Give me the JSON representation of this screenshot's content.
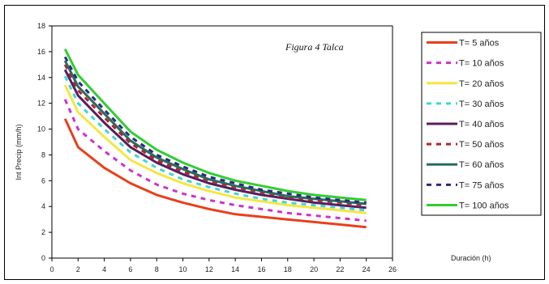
{
  "chart_data": {
    "type": "line",
    "title": "",
    "annotation": "Figura 4   Talca",
    "xlabel": "Duración (h)",
    "ylabel": "Int Precip (mm/h)",
    "xlim": [
      0,
      26
    ],
    "ylim": [
      0,
      18
    ],
    "x_ticks": [
      "0",
      "2",
      "4",
      "6",
      "8",
      "10",
      "12",
      "14",
      "16",
      "18",
      "20",
      "22",
      "24",
      "26"
    ],
    "y_ticks": [
      "0",
      "2",
      "4",
      "6",
      "8",
      "10",
      "12",
      "14",
      "16",
      "18"
    ],
    "x": [
      1,
      2,
      4,
      6,
      8,
      10,
      12,
      14,
      16,
      18,
      20,
      22,
      24
    ],
    "grid": false,
    "legend_position": "right",
    "series": [
      {
        "name": "T= 5 años",
        "color": "#e8401c",
        "dash": "solid",
        "values": [
          10.8,
          8.6,
          7.0,
          5.8,
          4.9,
          4.3,
          3.8,
          3.4,
          3.2,
          3.0,
          2.8,
          2.6,
          2.4
        ]
      },
      {
        "name": "T= 10 años",
        "color": "#cc33cc",
        "dash": "dashed",
        "values": [
          12.3,
          10.0,
          8.3,
          6.8,
          5.7,
          5.0,
          4.5,
          4.1,
          3.8,
          3.5,
          3.3,
          3.1,
          2.9
        ]
      },
      {
        "name": "T= 20 años",
        "color": "#f5e642",
        "dash": "solid",
        "values": [
          13.4,
          11.3,
          9.4,
          7.6,
          6.6,
          5.8,
          5.2,
          4.7,
          4.4,
          4.1,
          3.9,
          3.7,
          3.5
        ]
      },
      {
        "name": "T= 30 años",
        "color": "#3dd6d6",
        "dash": "dashed",
        "values": [
          14.1,
          12.0,
          10.0,
          8.2,
          7.0,
          6.1,
          5.5,
          5.0,
          4.6,
          4.3,
          4.1,
          3.9,
          3.7
        ]
      },
      {
        "name": "T= 40 años",
        "color": "#5a1e5e",
        "dash": "solid",
        "values": [
          14.6,
          12.6,
          10.5,
          8.6,
          7.4,
          6.5,
          5.8,
          5.3,
          4.9,
          4.6,
          4.3,
          4.1,
          3.9
        ]
      },
      {
        "name": "T= 50 años",
        "color": "#b8202c",
        "dash": "dashed",
        "values": [
          15.0,
          13.0,
          10.9,
          8.9,
          7.6,
          6.7,
          6.0,
          5.5,
          5.1,
          4.7,
          4.5,
          4.3,
          4.1
        ]
      },
      {
        "name": "T= 60 años",
        "color": "#2a6b5c",
        "dash": "solid",
        "values": [
          15.3,
          13.3,
          11.2,
          9.1,
          7.8,
          6.9,
          6.1,
          5.6,
          5.2,
          4.8,
          4.6,
          4.4,
          4.2
        ]
      },
      {
        "name": "T= 75 años",
        "color": "#2a2a80",
        "dash": "dashed",
        "values": [
          15.6,
          13.7,
          11.5,
          9.4,
          8.0,
          7.1,
          6.3,
          5.8,
          5.3,
          5.0,
          4.7,
          4.5,
          4.3
        ]
      },
      {
        "name": "T= 100 años",
        "color": "#33cc33",
        "dash": "solid",
        "values": [
          16.2,
          14.2,
          12.0,
          9.8,
          8.4,
          7.4,
          6.6,
          6.0,
          5.6,
          5.2,
          4.9,
          4.7,
          4.5
        ]
      }
    ]
  }
}
